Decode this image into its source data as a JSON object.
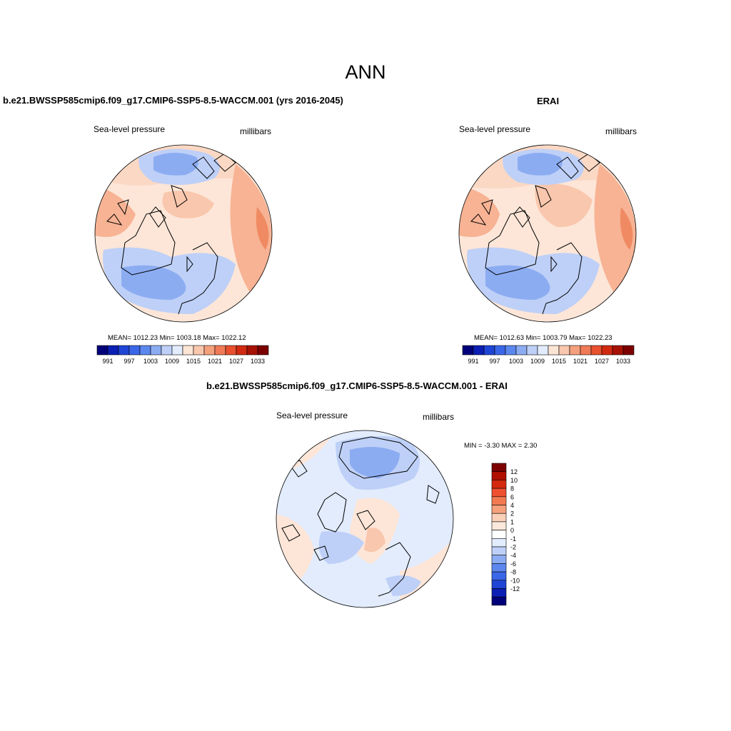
{
  "title": "ANN",
  "panels": {
    "model": {
      "title": "b.e21.BWSSP585cmip6.f09_g17.CMIP6-SSP5-8.5-WACCM.001 (yrs 2016-2045)",
      "left_label": "Sea-level pressure",
      "right_label": "millibars",
      "stats": "MEAN= 1012.23  Min= 1003.18  Max= 1022.12"
    },
    "obs": {
      "title": "ERAI",
      "left_label": "Sea-level pressure",
      "right_label": "millibars",
      "stats": "MEAN= 1012.63  Min= 1003.79  Max= 1022.23"
    },
    "diff": {
      "title": "b.e21.BWSSP585cmip6.f09_g17.CMIP6-SSP5-8.5-WACCM.001 - ERAI",
      "left_label": "Sea-level pressure",
      "right_label": "millibars",
      "stats": "MIN =  -3.30 MAX =   2.30"
    }
  },
  "colorbar_horizontal": {
    "colors": [
      "#00007a",
      "#0b1fb4",
      "#1f45d6",
      "#3a66e8",
      "#5b87ee",
      "#8cacf2",
      "#bed0f7",
      "#e2ecfd",
      "#fde5d6",
      "#f9c7ad",
      "#f5a07c",
      "#f07a55",
      "#e8502e",
      "#d12a10",
      "#a81205",
      "#7c0000"
    ],
    "labels": [
      "991",
      "997",
      "1003",
      "1009",
      "1015",
      "1021",
      "1027",
      "1033"
    ]
  },
  "colorbar_vertical": {
    "colors": [
      "#7c0000",
      "#b01000",
      "#d62a10",
      "#ee5030",
      "#f27a52",
      "#f6a07c",
      "#fad0b8",
      "#fde8dc",
      "#ffffff",
      "#e2ecfd",
      "#bed0f7",
      "#8cacf2",
      "#5b87ee",
      "#3a66e8",
      "#1f45d6",
      "#0b1fb4",
      "#00007a"
    ],
    "labels": [
      "12",
      "10",
      "8",
      "6",
      "4",
      "2",
      "1",
      "0",
      "-1",
      "-2",
      "-4",
      "-6",
      "-8",
      "-10",
      "-12"
    ]
  }
}
